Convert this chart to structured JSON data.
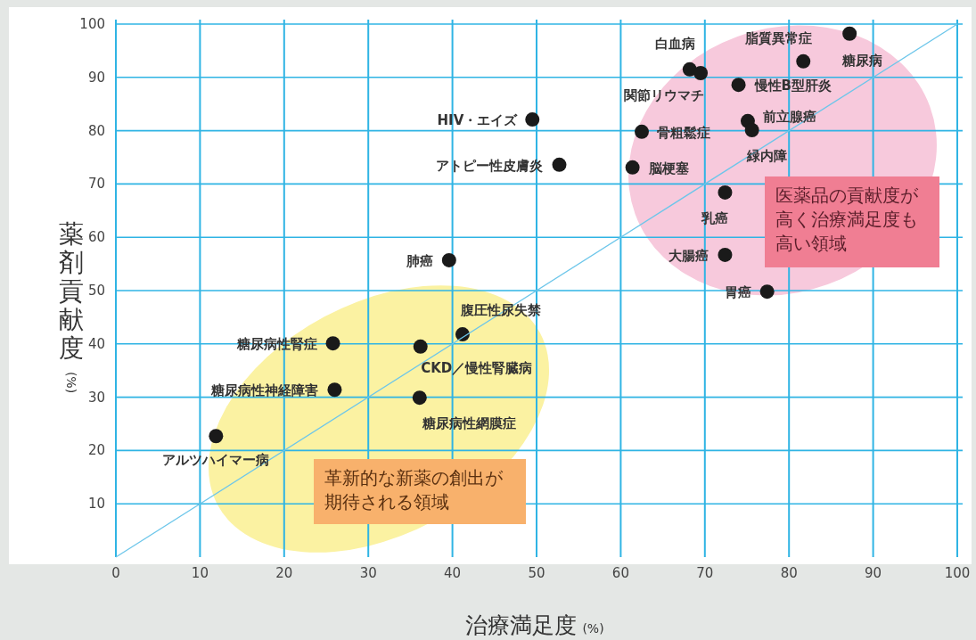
{
  "chart_data": {
    "type": "scatter",
    "xlabel": "治療満足度 (%)",
    "ylabel": "薬剤貢献度$_{(%)}$",
    "xlim": [
      0,
      100
    ],
    "ylim": [
      0,
      100
    ],
    "xticks": [
      0,
      10,
      20,
      30,
      40,
      50,
      60,
      70,
      80,
      90,
      100
    ],
    "yticks": [
      10,
      20,
      30,
      40,
      50,
      60,
      70,
      80,
      90,
      100
    ],
    "grid": true,
    "marker": "circle",
    "series": [
      {
        "color": "#1a1a1a",
        "x": [
          87.2,
          81.7,
          68.2,
          69.5,
          74.0,
          75.1,
          75.6,
          62.5,
          61.4,
          72.4,
          72.4,
          77.4,
          49.5,
          52.7,
          39.6,
          41.2,
          36.2,
          25.8,
          26.0,
          36.1,
          11.9
        ],
        "values": [
          98.2,
          93.0,
          91.5,
          90.8,
          88.6,
          81.8,
          80.1,
          79.8,
          73.1,
          68.4,
          56.7,
          49.8,
          82.1,
          73.6,
          55.7,
          41.8,
          39.5,
          40.1,
          31.4,
          29.9,
          22.7
        ]
      },
      {
        "type": "line",
        "marker": "none",
        "color": "#6cc6ea",
        "x": [
          0,
          100
        ],
        "values": [
          0,
          100
        ]
      }
    ],
    "annotations": [
      {
        "text": "脂質異常症",
        "x": 87.2,
        "y": 98.2
      },
      {
        "text": "糖尿病",
        "x": 81.7,
        "y": 93.0
      },
      {
        "text": "白血病",
        "x": 68.2,
        "y": 91.5
      },
      {
        "text": "関節リウマチ",
        "x": 69.5,
        "y": 90.8
      },
      {
        "text": "慢性B型肝炎",
        "x": 74.0,
        "y": 88.6
      },
      {
        "text": "前立腺癌",
        "x": 75.1,
        "y": 81.8
      },
      {
        "text": "緑内障",
        "x": 75.6,
        "y": 80.1
      },
      {
        "text": "骨粗鬆症",
        "x": 62.5,
        "y": 79.8
      },
      {
        "text": "脳梗塞",
        "x": 61.4,
        "y": 73.1
      },
      {
        "text": "乳癌",
        "x": 72.4,
        "y": 68.4
      },
      {
        "text": "大腸癌",
        "x": 72.4,
        "y": 56.7
      },
      {
        "text": "胃癌",
        "x": 77.4,
        "y": 49.8
      },
      {
        "text": "HIV・エイズ",
        "x": 49.5,
        "y": 82.1
      },
      {
        "text": "アトピー性皮膚炎",
        "x": 52.7,
        "y": 73.6
      },
      {
        "text": "肺癌",
        "x": 39.6,
        "y": 55.7
      },
      {
        "text": "腹圧性尿失禁",
        "x": 41.2,
        "y": 41.8
      },
      {
        "text": "CKD／慢性腎臓病",
        "x": 36.2,
        "y": 39.5
      },
      {
        "text": "糖尿病性腎症",
        "x": 25.8,
        "y": 40.1
      },
      {
        "text": "糖尿病性神経障害",
        "x": 26.0,
        "y": 31.4
      },
      {
        "text": "糖尿病性網膜症",
        "x": 36.1,
        "y": 29.9
      },
      {
        "text": "アルツハイマー病",
        "x": 11.9,
        "y": 22.7
      },
      "医薬品の貢献度が高く治療満足度も高い領域",
      "革新的な新薬の創出が期待される領域"
    ]
  }
}
